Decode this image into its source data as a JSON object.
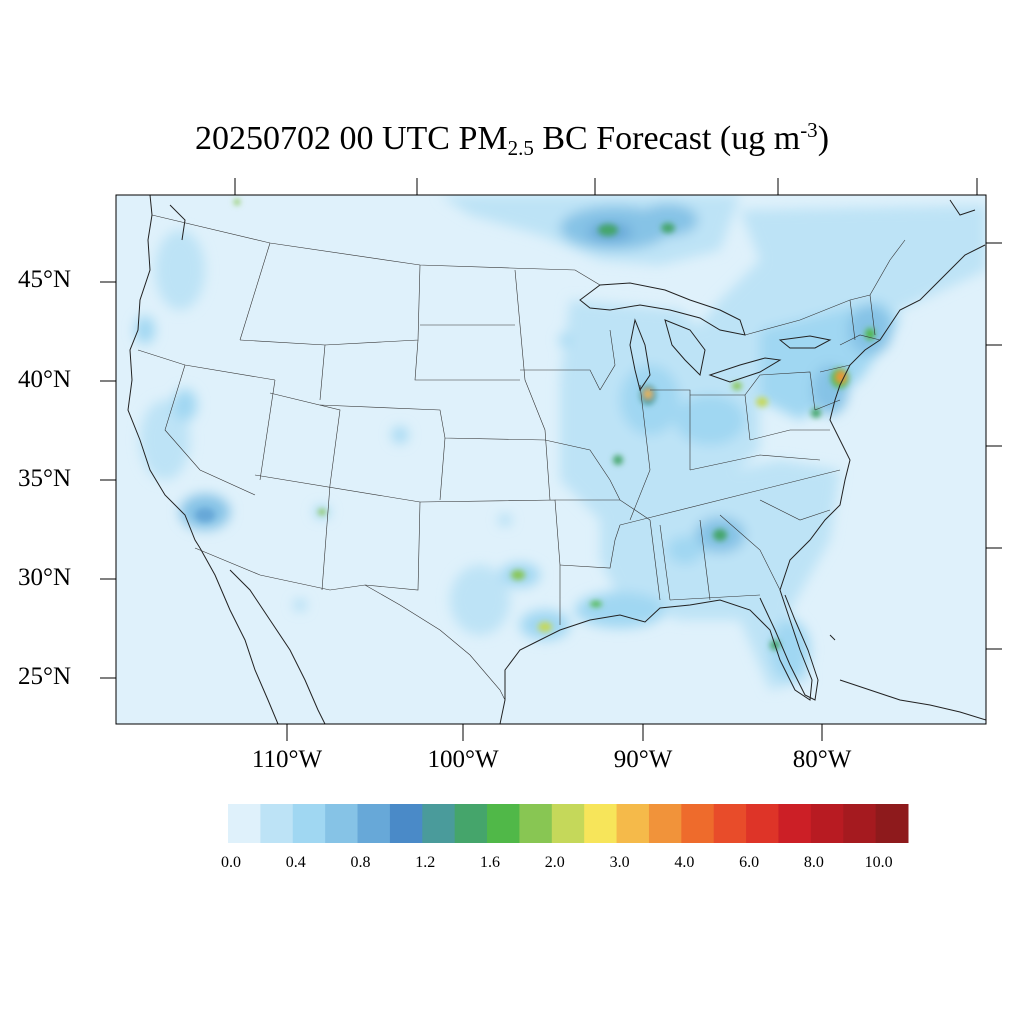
{
  "title": {
    "prefix": "20250702 00 UTC PM",
    "subscript": "2.5",
    "middle": " BC Forecast (ug m",
    "superscript": "-3",
    "suffix": ")"
  },
  "map": {
    "projection": "lambert-conformal",
    "region": "CONUS",
    "lat_labels": [
      "45°N",
      "40°N",
      "35°N",
      "30°N",
      "25°N"
    ],
    "lon_labels": [
      "110°W",
      "100°W",
      "90°W",
      "80°W"
    ],
    "background_color": "#dff1fb",
    "boundary_lines": [
      "coastlines",
      "state-borders",
      "country-borders"
    ],
    "hotspots_description_colors": [
      "#bde3f6",
      "#a0d7f2",
      "#86c3e6",
      "#67a8d8",
      "#4a8ac8",
      "#4a9b9b",
      "#45a56b",
      "#50b848",
      "#88c653",
      "#c5d85a",
      "#f7e55a",
      "#f5ba4a",
      "#f1933a",
      "#ee6b2c",
      "#e84c2a",
      "#de3428",
      "#cc1f26",
      "#b81b22",
      "#a51a1f",
      "#8e1a1c"
    ]
  },
  "colorbar": {
    "colors": [
      "#dff1fb",
      "#bde3f6",
      "#a0d7f2",
      "#86c3e6",
      "#67a8d8",
      "#4a8ac8",
      "#4a9b9b",
      "#45a56b",
      "#50b848",
      "#88c653",
      "#c5d85a",
      "#f7e55a",
      "#f5ba4a",
      "#f1933a",
      "#ee6b2c",
      "#e84c2a",
      "#de3428",
      "#cc1f26",
      "#b81b22",
      "#a51a1f",
      "#8e1a1c"
    ],
    "labels": [
      "0.0",
      "0.4",
      "0.8",
      "1.2",
      "1.6",
      "2.0",
      "3.0",
      "4.0",
      "6.0",
      "8.0",
      "10.0"
    ]
  }
}
